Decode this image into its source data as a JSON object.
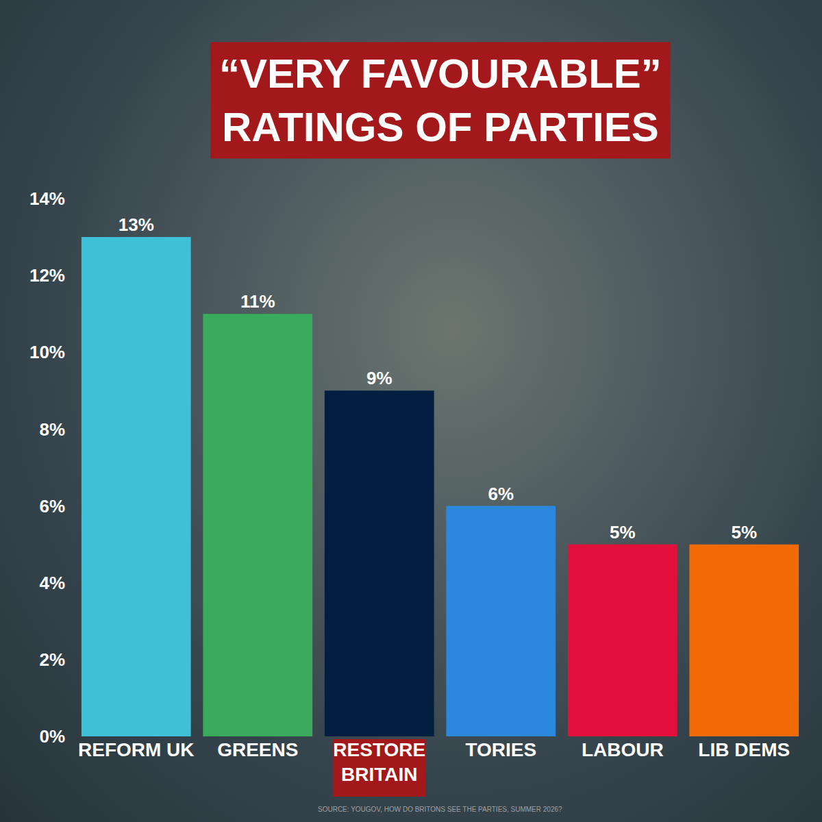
{
  "chart_data": {
    "type": "bar",
    "title": "“VERY FAVOURABLE” RATINGS OF PARTIES",
    "categories": [
      "REFORM UK",
      "GREENS",
      "RESTORE BRITAIN",
      "TORIES",
      "LABOUR",
      "LIB DEMS"
    ],
    "values": [
      13,
      11,
      9,
      6,
      5,
      5
    ],
    "value_labels": [
      "13%",
      "11%",
      "9%",
      "6%",
      "5%",
      "5%"
    ],
    "colors": [
      "#40bfd8",
      "#3aaa5c",
      "#041e42",
      "#2b88dc",
      "#e3103b",
      "#f26a06"
    ],
    "ylim": [
      0,
      14
    ],
    "yticks": [
      {
        "value": 0,
        "label": "0%"
      },
      {
        "value": 2,
        "label": "2%"
      },
      {
        "value": 4,
        "label": "4%"
      },
      {
        "value": 6,
        "label": "6%"
      },
      {
        "value": 8,
        "label": "8%"
      },
      {
        "value": 10,
        "label": "10%"
      },
      {
        "value": 12,
        "label": "12%"
      },
      {
        "value": 14,
        "label": "14%"
      }
    ],
    "data_labels": true,
    "grid": false,
    "annotations": [
      "SOURCE: YOUGOV, HOW DO BRITONS SEE THE PARTIES, SUMMER 2026?"
    ]
  }
}
